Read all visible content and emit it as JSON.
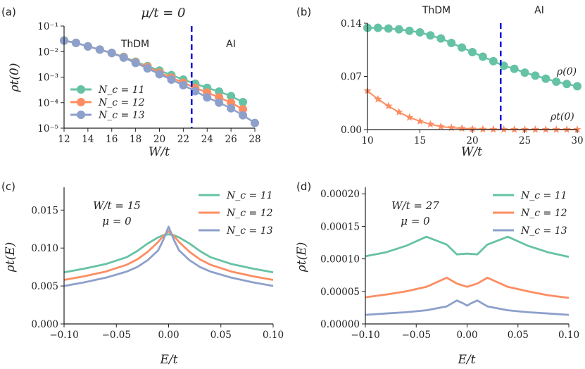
{
  "colors": {
    "nc11": "#66c2a5",
    "nc12": "#fc8d62",
    "nc13": "#8da0cb",
    "boundary": "#0000dd",
    "axis": "#222222"
  },
  "chart_data": [
    {
      "panel": "(a)",
      "type": "line",
      "title": "μ/t = 0",
      "xlabel": "W/t",
      "ylabel": "ρt(0)",
      "xlim": [
        12,
        28
      ],
      "ylim_log10": [
        -5,
        -1
      ],
      "yscale": "log",
      "xticks": [
        12,
        14,
        16,
        18,
        20,
        22,
        24,
        26,
        28
      ],
      "xtick_labels": [
        "12",
        "14",
        "16",
        "18",
        "20",
        "22",
        "24",
        "26",
        "28"
      ],
      "yticks": [
        -5,
        -4,
        -3,
        -2,
        -1
      ],
      "ytick_labels": [
        "10⁻⁵",
        "10⁻⁴",
        "10⁻³",
        "10⁻²",
        "10⁻¹"
      ],
      "regions": [
        "ThDM",
        "AI"
      ],
      "boundary_x": 22.7,
      "legend": [
        "N_c = 11",
        "N_c = 12",
        "N_c = 13"
      ],
      "series": [
        {
          "name": "N_c = 11",
          "x": [
            12,
            13,
            14,
            15,
            16,
            17,
            18,
            19,
            20,
            21,
            22,
            23,
            24,
            25,
            26,
            27
          ],
          "y": [
            0.027,
            0.022,
            0.016,
            0.012,
            0.0088,
            0.0062,
            0.004,
            0.0027,
            0.0018,
            0.0012,
            0.0008,
            0.00055,
            0.00038,
            0.00027,
            0.00018,
            0.000105
          ]
        },
        {
          "name": "N_c = 12",
          "x": [
            12,
            13,
            14,
            15,
            16,
            17,
            18,
            19,
            20,
            21,
            22,
            23,
            24,
            25,
            26,
            27
          ],
          "y": [
            0.027,
            0.022,
            0.016,
            0.012,
            0.0088,
            0.006,
            0.0038,
            0.0025,
            0.0015,
            0.00095,
            0.0006,
            0.00038,
            0.00025,
            0.00016,
            0.0001,
            5.5e-05
          ]
        },
        {
          "name": "N_c = 13",
          "x": [
            12,
            13,
            14,
            15,
            16,
            17,
            18,
            19,
            20,
            21,
            22,
            23,
            24,
            25,
            26,
            27,
            28
          ],
          "y": [
            0.027,
            0.022,
            0.016,
            0.012,
            0.0088,
            0.0058,
            0.0036,
            0.0022,
            0.0013,
            0.0008,
            0.00048,
            0.00028,
            0.00016,
            0.0001,
            6e-05,
            3.2e-05,
            1.6e-05
          ]
        }
      ]
    },
    {
      "panel": "(b)",
      "type": "line",
      "xlabel": "W/t",
      "xlim": [
        10,
        30
      ],
      "ylim": [
        0,
        0.14
      ],
      "xticks": [
        10,
        15,
        20,
        25,
        30
      ],
      "xtick_labels": [
        "10",
        "15",
        "20",
        "25",
        "30"
      ],
      "yticks": [
        0,
        0.07,
        0.14
      ],
      "ytick_labels": [
        "0.00",
        "0.07",
        "0.14"
      ],
      "regions": [
        "ThDM",
        "AI"
      ],
      "boundary_x": 22.7,
      "series": [
        {
          "name": "ρ(0)",
          "marker": "circle",
          "x": [
            10,
            11,
            12,
            13,
            14,
            15,
            16,
            17,
            18,
            19,
            20,
            21,
            22,
            23,
            24,
            25,
            26,
            27,
            28,
            29,
            30
          ],
          "y": [
            0.134,
            0.134,
            0.133,
            0.132,
            0.13,
            0.128,
            0.124,
            0.12,
            0.114,
            0.108,
            0.102,
            0.096,
            0.09,
            0.084,
            0.08,
            0.075,
            0.071,
            0.067,
            0.063,
            0.06,
            0.057
          ]
        },
        {
          "name": "ρt(0)",
          "marker": "star",
          "x": [
            10,
            11,
            12,
            13,
            14,
            15,
            16,
            17,
            18,
            19,
            20,
            21,
            22,
            23,
            24,
            25,
            26,
            27,
            28,
            29,
            30
          ],
          "y": [
            0.051,
            0.04,
            0.031,
            0.023,
            0.016,
            0.011,
            0.007,
            0.004,
            0.0025,
            0.0015,
            0.0008,
            0.0004,
            0.0002,
            0.0001,
            5e-05,
            0,
            0,
            0,
            0,
            0,
            0
          ]
        }
      ]
    },
    {
      "panel": "(c)",
      "type": "line",
      "xlabel": "E/t",
      "ylabel": "ρt(E)",
      "xlim": [
        -0.1,
        0.1
      ],
      "ylim": [
        0,
        0.018
      ],
      "xticks": [
        -0.1,
        -0.05,
        0,
        0.05,
        0.1
      ],
      "xtick_labels": [
        "−0.10",
        "−0.05",
        "0.00",
        "0.05",
        "0.10"
      ],
      "yticks": [
        0,
        0.005,
        0.01,
        0.015
      ],
      "ytick_labels": [
        "0.000",
        "0.005",
        "0.010",
        "0.015"
      ],
      "annotation": [
        "W/t = 15",
        "μ = 0"
      ],
      "legend": [
        "N_c = 11",
        "N_c = 12",
        "N_c = 13"
      ],
      "series": [
        {
          "name": "N_c = 11",
          "x": [
            -0.1,
            -0.08,
            -0.06,
            -0.04,
            -0.03,
            -0.02,
            -0.01,
            -0.005,
            0,
            0.005,
            0.01,
            0.02,
            0.03,
            0.04,
            0.06,
            0.08,
            0.1
          ],
          "y": [
            0.0068,
            0.0073,
            0.0079,
            0.0088,
            0.0096,
            0.0106,
            0.0114,
            0.0117,
            0.0118,
            0.0117,
            0.0114,
            0.0106,
            0.0096,
            0.0088,
            0.0079,
            0.0073,
            0.0068
          ]
        },
        {
          "name": "N_c = 12",
          "x": [
            -0.1,
            -0.08,
            -0.06,
            -0.04,
            -0.03,
            -0.02,
            -0.01,
            -0.005,
            0,
            0.005,
            0.01,
            0.02,
            0.03,
            0.04,
            0.06,
            0.08,
            0.1
          ],
          "y": [
            0.0058,
            0.0063,
            0.0069,
            0.0078,
            0.0085,
            0.0095,
            0.0108,
            0.0116,
            0.0122,
            0.0116,
            0.0108,
            0.0095,
            0.0085,
            0.0078,
            0.0069,
            0.0063,
            0.0058
          ]
        },
        {
          "name": "N_c = 13",
          "x": [
            -0.1,
            -0.08,
            -0.06,
            -0.04,
            -0.03,
            -0.02,
            -0.01,
            -0.005,
            0,
            0.005,
            0.01,
            0.02,
            0.03,
            0.04,
            0.06,
            0.08,
            0.1
          ],
          "y": [
            0.005,
            0.0055,
            0.0061,
            0.0069,
            0.0075,
            0.0084,
            0.0097,
            0.0111,
            0.0128,
            0.0111,
            0.0097,
            0.0084,
            0.0075,
            0.0069,
            0.0061,
            0.0055,
            0.005
          ]
        }
      ]
    },
    {
      "panel": "(d)",
      "type": "line",
      "xlabel": "E/t",
      "ylabel": "ρt(E)",
      "xlim": [
        -0.1,
        0.1
      ],
      "ylim": [
        0,
        0.00021
      ],
      "xticks": [
        -0.1,
        -0.05,
        0,
        0.05,
        0.1
      ],
      "xtick_labels": [
        "−0.10",
        "−0.05",
        "0.00",
        "0.05",
        "0.10"
      ],
      "yticks": [
        0,
        5e-05,
        0.0001,
        0.00015,
        0.0002
      ],
      "ytick_labels": [
        "0.00000",
        "0.00005",
        "0.00010",
        "0.00015",
        "0.00020"
      ],
      "annotation": [
        "W/t = 27",
        "μ = 0"
      ],
      "legend": [
        "N_c = 11",
        "N_c = 12",
        "N_c = 13"
      ],
      "series": [
        {
          "name": "N_c = 11",
          "x": [
            -0.1,
            -0.08,
            -0.06,
            -0.04,
            -0.02,
            -0.01,
            0,
            0.01,
            0.02,
            0.04,
            0.06,
            0.08,
            0.1
          ],
          "y": [
            0.000104,
            0.00011,
            0.00012,
            0.000134,
            0.000122,
            0.000107,
            0.000108,
            0.000107,
            0.000122,
            0.000134,
            0.00012,
            0.00011,
            0.000103
          ]
        },
        {
          "name": "N_c = 12",
          "x": [
            -0.1,
            -0.08,
            -0.06,
            -0.04,
            -0.02,
            -0.01,
            0,
            0.01,
            0.02,
            0.04,
            0.06,
            0.08,
            0.1
          ],
          "y": [
            4.1e-05,
            4.5e-05,
            5e-05,
            5.7e-05,
            7.1e-05,
            6.2e-05,
            5.7e-05,
            6.2e-05,
            7.1e-05,
            5.7e-05,
            5e-05,
            4.4e-05,
            4e-05
          ]
        },
        {
          "name": "N_c = 13",
          "x": [
            -0.1,
            -0.08,
            -0.06,
            -0.04,
            -0.02,
            -0.01,
            -0.003,
            0,
            0.003,
            0.01,
            0.02,
            0.04,
            0.06,
            0.08,
            0.1
          ],
          "y": [
            1.4e-05,
            1.6e-05,
            1.8e-05,
            2.1e-05,
            2.7e-05,
            3.6e-05,
            3.1e-05,
            2.8e-05,
            3.1e-05,
            3.6e-05,
            2.7e-05,
            2.1e-05,
            1.8e-05,
            1.6e-05,
            1.4e-05
          ]
        }
      ]
    }
  ]
}
